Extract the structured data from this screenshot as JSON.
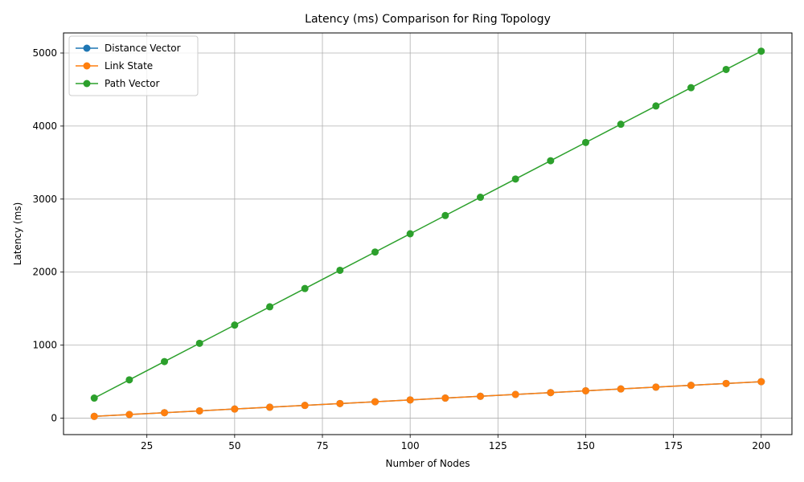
{
  "chart_data": {
    "type": "line",
    "title": "Latency (ms) Comparison for Ring Topology",
    "xlabel": "Number of Nodes",
    "ylabel": "Latency (ms)",
    "xlim": [
      1.25,
      208.75
    ],
    "ylim": [
      -225,
      5275
    ],
    "xticks": [
      25,
      50,
      75,
      100,
      125,
      150,
      175,
      200
    ],
    "yticks": [
      0,
      1000,
      2000,
      3000,
      4000,
      5000
    ],
    "grid": true,
    "legend_position": "upper-left",
    "x": [
      10,
      20,
      30,
      40,
      50,
      60,
      70,
      80,
      90,
      100,
      110,
      120,
      130,
      140,
      150,
      160,
      170,
      180,
      190,
      200
    ],
    "series": [
      {
        "name": "Distance Vector",
        "color": "#1f77b4",
        "values": [
          25,
          50,
          75,
          100,
          125,
          150,
          175,
          200,
          225,
          250,
          275,
          300,
          325,
          350,
          375,
          400,
          425,
          450,
          475,
          500
        ]
      },
      {
        "name": "Link State",
        "color": "#ff7f0e",
        "values": [
          25,
          50,
          75,
          100,
          125,
          150,
          175,
          200,
          225,
          250,
          275,
          300,
          325,
          350,
          375,
          400,
          425,
          450,
          475,
          500
        ]
      },
      {
        "name": "Path Vector",
        "color": "#2ca02c",
        "values": [
          275,
          525,
          775,
          1025,
          1275,
          1525,
          1775,
          2025,
          2275,
          2525,
          2775,
          3025,
          3275,
          3525,
          3775,
          4025,
          4275,
          4525,
          4775,
          5025
        ]
      }
    ]
  }
}
